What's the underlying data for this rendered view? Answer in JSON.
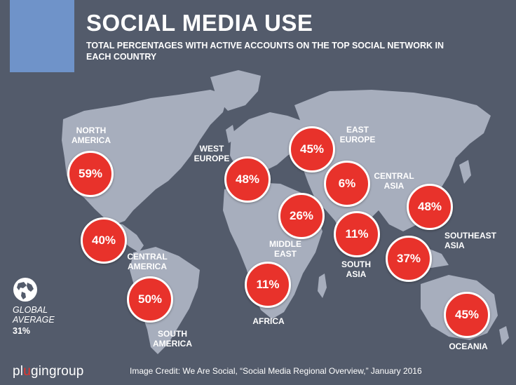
{
  "header": {
    "title": "SOCIAL MEDIA USE",
    "subtitle": "TOTAL PERCENTAGES WITH ACTIVE ACCOUNTS ON THE TOP SOCIAL NETWORK IN EACH COUNTRY"
  },
  "colors": {
    "background": "#535b6b",
    "accent_block": "#6f93c9",
    "bubble": "#e8322b",
    "land": "#a7aebd"
  },
  "regions": [
    {
      "id": "north-america",
      "label": "NORTH\nAMERICA",
      "value": "59%"
    },
    {
      "id": "central-america",
      "label": "CENTRAL\nAMERICA",
      "value": "40%"
    },
    {
      "id": "south-america",
      "label": "SOUTH\nAMERICA",
      "value": "50%"
    },
    {
      "id": "west-europe",
      "label": "WEST\nEUROPE",
      "value": "48%"
    },
    {
      "id": "east-europe",
      "label": "EAST\nEUROPE",
      "value": "45%"
    },
    {
      "id": "central-asia",
      "label": "CENTRAL\nASIA",
      "value": "6%"
    },
    {
      "id": "middle-east",
      "label": "MIDDLE\nEAST",
      "value": "26%"
    },
    {
      "id": "africa",
      "label": "AFRICA",
      "value": "11%"
    },
    {
      "id": "south-asia",
      "label": "SOUTH\nASIA",
      "value": "11%"
    },
    {
      "id": "east-asia",
      "label": "",
      "value": "48%"
    },
    {
      "id": "southeast-asia",
      "label": "SOUTHEAST\nASIA",
      "value": "37%"
    },
    {
      "id": "oceania",
      "label": "OCEANIA",
      "value": "45%"
    }
  ],
  "global": {
    "label_line1": "GLOBAL",
    "label_line2": "AVERAGE",
    "value": "31%",
    "icon": "globe-icon"
  },
  "footer": {
    "brand_pre": "pl",
    "brand_dot": "u",
    "brand_post": "gingroup",
    "credit": "Image Credit: We Are Social, “Social Media Regional Overview,” January 2016"
  }
}
